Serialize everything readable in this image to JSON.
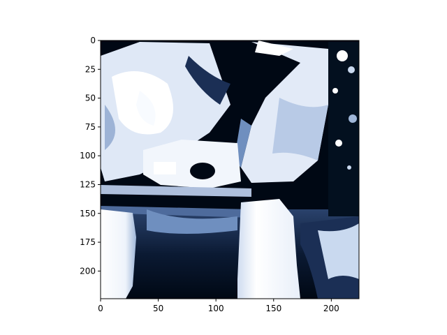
{
  "figure": {
    "image_description_icon": "abstract-photo-icon",
    "colormap": [
      "#ffffff",
      "#c9d9ef",
      "#6f8fbf",
      "#1b2f55",
      "#000814"
    ],
    "image_extent": {
      "x": [
        0,
        224
      ],
      "y": [
        0,
        224
      ]
    },
    "x_ticks": [
      {
        "value": 0,
        "label": "0"
      },
      {
        "value": 50,
        "label": "50"
      },
      {
        "value": 100,
        "label": "100"
      },
      {
        "value": 150,
        "label": "150"
      },
      {
        "value": 200,
        "label": "200"
      }
    ],
    "y_ticks": [
      {
        "value": 0,
        "label": "0"
      },
      {
        "value": 25,
        "label": "25"
      },
      {
        "value": 50,
        "label": "50"
      },
      {
        "value": 75,
        "label": "75"
      },
      {
        "value": 100,
        "label": "100"
      },
      {
        "value": 125,
        "label": "125"
      },
      {
        "value": 150,
        "label": "150"
      },
      {
        "value": 175,
        "label": "175"
      },
      {
        "value": 200,
        "label": "200"
      }
    ]
  }
}
